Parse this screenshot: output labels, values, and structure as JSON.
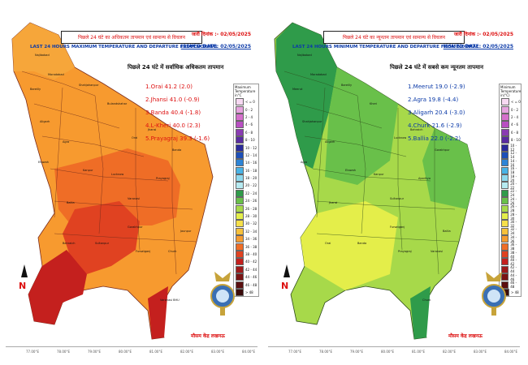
{
  "left": {
    "header": "पिछले 24 घंटे का अधिकतम तापमान एवं सामान्य से विचलन",
    "date": "जारी दिनांक :- 02/05/2025",
    "subtitle": "LAST 24 HOURS MAXIMUM TEMPERATURE AND DEPARTURE FROM NORMAL",
    "issued": "ISSUED DATE: 02/05/2025",
    "title": "पिछले 24 घंटे में सर्वाधिक अधिकतम तापमान",
    "top5": [
      "1.Orai 41.2 (2.0)",
      "2.Jhansi 41.0 (-0.9)",
      "3.Banda 40.4 (-1.8)",
      "4.L-Kheri 40.0 (2.3)",
      "5.Prayagraj 39.3 (-1.6)"
    ],
    "legend_title": "Maximum Temperature in°C",
    "imd": "मौसम केंद्र लखनऊ",
    "north": "N",
    "district_labels": [
      "Najibabad",
      "Moradabad",
      "Bareilly",
      "Shahjahanpur",
      "Bulandshahar",
      "Aligarh",
      "Agra",
      "Etawah",
      "Kanpur",
      "Lucknow",
      "Orai",
      "Jhansi",
      "Banda",
      "Prayagraj",
      "Varanasi",
      "Ballia",
      "Bahraich",
      "Sultanpur",
      "Gorakhpur",
      "Fursatganj",
      "Churk",
      "Jaunpur",
      "Varanasi BHU"
    ]
  },
  "right": {
    "header": "पिछले 24 घंटे का न्यूनतम तापमान एवं सामान्य से विचलन",
    "date": "जारी दिनांक :- 02/05/2025",
    "subtitle": "LAST 24 HOURS MINIMUM TEMPERATURE AND DEPARTURE FROM NORMAL",
    "issued": "ISSUED DATE: 02/05/2025",
    "title": "पिछले 24 घंटे में सबसे कम न्यूनतम तापमान",
    "top5": [
      "1.Meerut 19.0 (-2.9)",
      "2.Agra 19.8 (-4.4)",
      "3.Aligarh 20.4 (-3.0)",
      "4.Churk 21.6 (-2.9)",
      "5.Ballia 22.0 (-2.2)"
    ],
    "legend_title": "Minimum Temperature in(°C)",
    "imd": "मौसम केंद्र लखनऊ",
    "north": "N",
    "district_labels": [
      "Najibabad",
      "Moradabad",
      "Meerut",
      "Bareilly",
      "Kheri",
      "Shahjahanpur",
      "Aligarh",
      "Agra",
      "Etawah",
      "Kanpur",
      "Lucknow",
      "Bahraich",
      "Gorakhpur",
      "Ayodhya",
      "Sultanpur",
      "Jhansi",
      "Orai",
      "Banda",
      "Fursatganj",
      "Prayagraj",
      "Varanasi",
      "Ballia",
      "Churk"
    ]
  },
  "legend_bins": [
    {
      "label": "< = 0",
      "color": "#f7d9f2"
    },
    {
      "label": "0 - 2",
      "color": "#e6a3df"
    },
    {
      "label": "2 - 4",
      "color": "#d570cc"
    },
    {
      "label": "4 - 6",
      "color": "#b84fc2"
    },
    {
      "label": "6 - 8",
      "color": "#8a3cb2"
    },
    {
      "label": "8 - 10",
      "color": "#5a2ca0"
    },
    {
      "label": "10 - 12",
      "color": "#2a2a9a"
    },
    {
      "label": "12 - 14",
      "color": "#1d4fb8"
    },
    {
      "label": "14 - 16",
      "color": "#2d84d6"
    },
    {
      "label": "16 - 18",
      "color": "#49b3e6"
    },
    {
      "label": "18 - 20",
      "color": "#8fd9ee"
    },
    {
      "label": "20 - 22",
      "color": "#b6eaf1"
    },
    {
      "label": "22 - 24",
      "color": "#2f9b4a"
    },
    {
      "label": "24 - 26",
      "color": "#69c04a"
    },
    {
      "label": "26 - 28",
      "color": "#a7d94a"
    },
    {
      "label": "28 - 30",
      "color": "#e4ee4a"
    },
    {
      "label": "30 - 32",
      "color": "#f6e04a"
    },
    {
      "label": "32 - 34",
      "color": "#f7c13b"
    },
    {
      "label": "34 - 36",
      "color": "#f59b2f"
    },
    {
      "label": "36 - 38",
      "color": "#ef6d26"
    },
    {
      "label": "38 - 40",
      "color": "#e04221"
    },
    {
      "label": "40 - 42",
      "color": "#c4201e"
    },
    {
      "label": "42 - 44",
      "color": "#9e1a1a"
    },
    {
      "label": "44 - 46",
      "color": "#7a1414"
    },
    {
      "label": "46 - 48",
      "color": "#5a0f0f"
    },
    {
      "label": "> 48",
      "color": "#3a0a0a"
    }
  ],
  "axis_labels": [
    "77.00°E",
    "78.00°E",
    "79.00°E",
    "80.00°E",
    "81.00°E",
    "82.00°E",
    "83.00°E",
    "84.00°E"
  ]
}
